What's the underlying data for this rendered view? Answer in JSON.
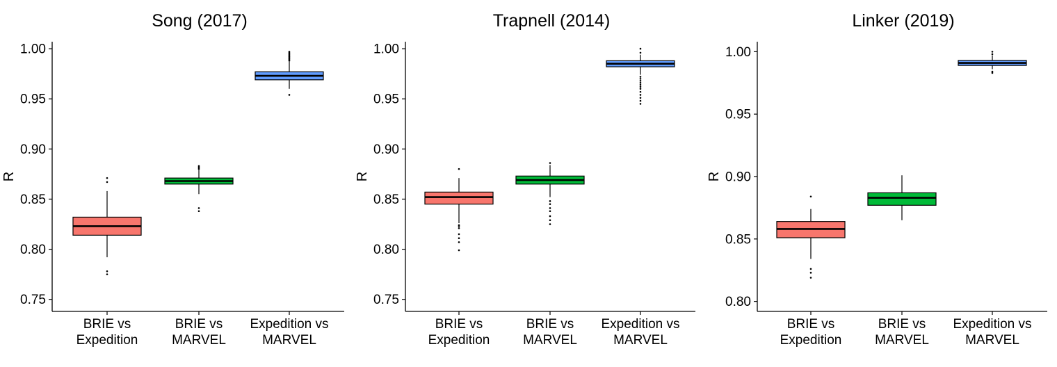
{
  "colors": {
    "BRIE vs Expedition": "#F8766D",
    "BRIE vs MARVEL": "#00BA38",
    "Expedition vs MARVEL": "#619CFF"
  },
  "chart_data": [
    {
      "type": "boxplot",
      "title": "Song (2017)",
      "ylabel": "R",
      "xlabel": "",
      "ylim": [
        0.738,
        1.007
      ],
      "yticks": [
        "0.75",
        "0.80",
        "0.85",
        "0.90",
        "0.95",
        "1.00"
      ],
      "categories": [
        [
          "BRIE vs",
          "Expedition"
        ],
        [
          "BRIE vs",
          "MARVEL"
        ],
        [
          "Expedition vs",
          "MARVEL"
        ]
      ],
      "boxes": [
        {
          "name": "BRIE vs Expedition",
          "whisker_low": 0.792,
          "q1": 0.814,
          "median": 0.823,
          "q3": 0.832,
          "whisker_high": 0.858,
          "outliers": [
            0.775,
            0.778,
            0.867,
            0.871
          ]
        },
        {
          "name": "BRIE vs MARVEL",
          "whisker_low": 0.855,
          "q1": 0.865,
          "median": 0.868,
          "q3": 0.871,
          "whisker_high": 0.879,
          "outliers": [
            0.838,
            0.841,
            0.88,
            0.881,
            0.882,
            0.883
          ]
        },
        {
          "name": "Expedition vs MARVEL",
          "whisker_low": 0.96,
          "q1": 0.969,
          "median": 0.973,
          "q3": 0.977,
          "whisker_high": 0.987,
          "outliers": [
            0.954,
            0.988,
            0.989,
            0.99,
            0.991,
            0.992,
            0.993,
            0.994,
            0.995,
            0.996,
            0.997
          ]
        }
      ]
    },
    {
      "type": "boxplot",
      "title": "Trapnell (2014)",
      "ylabel": "R",
      "xlabel": "",
      "ylim": [
        0.738,
        1.007
      ],
      "yticks": [
        "0.75",
        "0.80",
        "0.85",
        "0.90",
        "0.95",
        "1.00"
      ],
      "categories": [
        [
          "BRIE vs",
          "Expedition"
        ],
        [
          "BRIE vs",
          "MARVEL"
        ],
        [
          "Expedition vs",
          "MARVEL"
        ]
      ],
      "boxes": [
        {
          "name": "BRIE vs Expedition",
          "whisker_low": 0.826,
          "q1": 0.845,
          "median": 0.852,
          "q3": 0.857,
          "whisker_high": 0.871,
          "outliers": [
            0.799,
            0.807,
            0.811,
            0.815,
            0.821,
            0.823,
            0.824,
            0.88
          ]
        },
        {
          "name": "BRIE vs MARVEL",
          "whisker_low": 0.852,
          "q1": 0.865,
          "median": 0.869,
          "q3": 0.873,
          "whisker_high": 0.884,
          "outliers": [
            0.825,
            0.829,
            0.833,
            0.838,
            0.841,
            0.845,
            0.848,
            0.886
          ]
        },
        {
          "name": "Expedition vs MARVEL",
          "whisker_low": 0.974,
          "q1": 0.982,
          "median": 0.985,
          "q3": 0.988,
          "whisker_high": 0.994,
          "outliers": [
            0.945,
            0.948,
            0.951,
            0.954,
            0.957,
            0.96,
            0.962,
            0.964,
            0.966,
            0.968,
            0.97,
            0.972,
            0.996,
            1.0
          ]
        }
      ]
    },
    {
      "type": "boxplot",
      "title": "Linker (2019)",
      "ylabel": "R",
      "xlabel": "",
      "ylim": [
        0.792,
        1.008
      ],
      "yticks": [
        "0.80",
        "0.85",
        "0.90",
        "0.95",
        "1.00"
      ],
      "categories": [
        [
          "BRIE vs",
          "Expedition"
        ],
        [
          "BRIE vs",
          "MARVEL"
        ],
        [
          "Expedition vs",
          "MARVEL"
        ]
      ],
      "boxes": [
        {
          "name": "BRIE vs Expedition",
          "whisker_low": 0.834,
          "q1": 0.851,
          "median": 0.858,
          "q3": 0.864,
          "whisker_high": 0.874,
          "outliers": [
            0.819,
            0.823,
            0.826,
            0.884
          ]
        },
        {
          "name": "BRIE vs MARVEL",
          "whisker_low": 0.865,
          "q1": 0.877,
          "median": 0.883,
          "q3": 0.887,
          "whisker_high": 0.901,
          "outliers": []
        },
        {
          "name": "Expedition vs MARVEL",
          "whisker_low": 0.986,
          "q1": 0.989,
          "median": 0.991,
          "q3": 0.993,
          "whisker_high": 0.997,
          "outliers": [
            0.983,
            0.984,
            0.998,
            1.0
          ]
        }
      ]
    }
  ]
}
